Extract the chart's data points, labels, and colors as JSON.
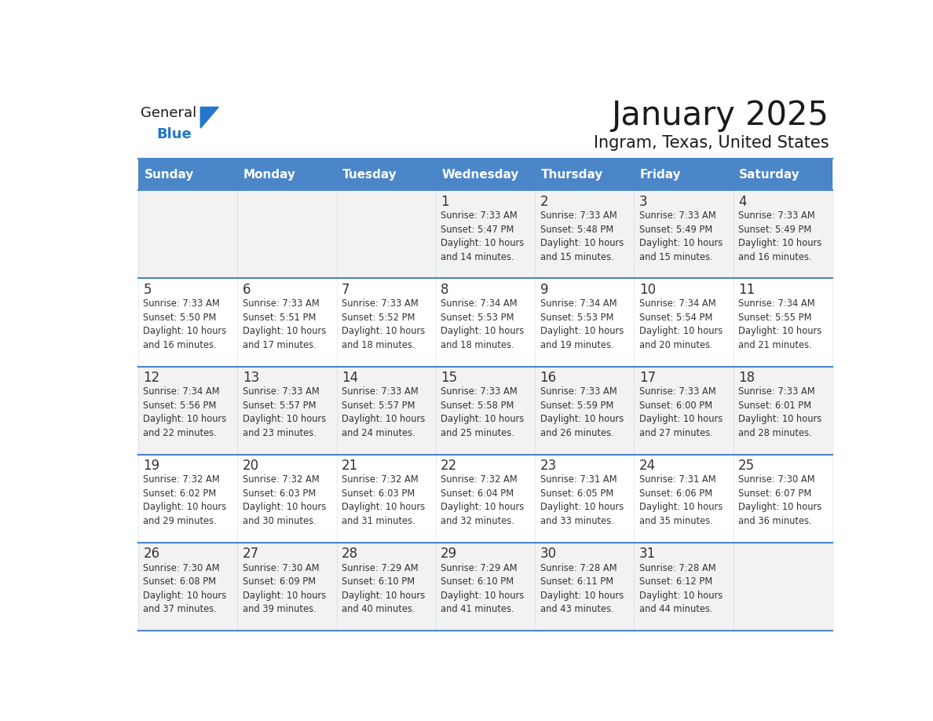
{
  "title": "January 2025",
  "subtitle": "Ingram, Texas, United States",
  "header_bg_color": "#4a86c8",
  "header_text_color": "#ffffff",
  "cell_bg_color": "#f2f2f2",
  "cell_alt_bg_color": "#ffffff",
  "day_number_color": "#333333",
  "cell_text_color": "#333333",
  "line_color": "#4a86c8",
  "days_of_week": [
    "Sunday",
    "Monday",
    "Tuesday",
    "Wednesday",
    "Thursday",
    "Friday",
    "Saturday"
  ],
  "calendar_data": [
    [
      {
        "day": null,
        "text": ""
      },
      {
        "day": null,
        "text": ""
      },
      {
        "day": null,
        "text": ""
      },
      {
        "day": 1,
        "text": "Sunrise: 7:33 AM\nSunset: 5:47 PM\nDaylight: 10 hours\nand 14 minutes."
      },
      {
        "day": 2,
        "text": "Sunrise: 7:33 AM\nSunset: 5:48 PM\nDaylight: 10 hours\nand 15 minutes."
      },
      {
        "day": 3,
        "text": "Sunrise: 7:33 AM\nSunset: 5:49 PM\nDaylight: 10 hours\nand 15 minutes."
      },
      {
        "day": 4,
        "text": "Sunrise: 7:33 AM\nSunset: 5:49 PM\nDaylight: 10 hours\nand 16 minutes."
      }
    ],
    [
      {
        "day": 5,
        "text": "Sunrise: 7:33 AM\nSunset: 5:50 PM\nDaylight: 10 hours\nand 16 minutes."
      },
      {
        "day": 6,
        "text": "Sunrise: 7:33 AM\nSunset: 5:51 PM\nDaylight: 10 hours\nand 17 minutes."
      },
      {
        "day": 7,
        "text": "Sunrise: 7:33 AM\nSunset: 5:52 PM\nDaylight: 10 hours\nand 18 minutes."
      },
      {
        "day": 8,
        "text": "Sunrise: 7:34 AM\nSunset: 5:53 PM\nDaylight: 10 hours\nand 18 minutes."
      },
      {
        "day": 9,
        "text": "Sunrise: 7:34 AM\nSunset: 5:53 PM\nDaylight: 10 hours\nand 19 minutes."
      },
      {
        "day": 10,
        "text": "Sunrise: 7:34 AM\nSunset: 5:54 PM\nDaylight: 10 hours\nand 20 minutes."
      },
      {
        "day": 11,
        "text": "Sunrise: 7:34 AM\nSunset: 5:55 PM\nDaylight: 10 hours\nand 21 minutes."
      }
    ],
    [
      {
        "day": 12,
        "text": "Sunrise: 7:34 AM\nSunset: 5:56 PM\nDaylight: 10 hours\nand 22 minutes."
      },
      {
        "day": 13,
        "text": "Sunrise: 7:33 AM\nSunset: 5:57 PM\nDaylight: 10 hours\nand 23 minutes."
      },
      {
        "day": 14,
        "text": "Sunrise: 7:33 AM\nSunset: 5:57 PM\nDaylight: 10 hours\nand 24 minutes."
      },
      {
        "day": 15,
        "text": "Sunrise: 7:33 AM\nSunset: 5:58 PM\nDaylight: 10 hours\nand 25 minutes."
      },
      {
        "day": 16,
        "text": "Sunrise: 7:33 AM\nSunset: 5:59 PM\nDaylight: 10 hours\nand 26 minutes."
      },
      {
        "day": 17,
        "text": "Sunrise: 7:33 AM\nSunset: 6:00 PM\nDaylight: 10 hours\nand 27 minutes."
      },
      {
        "day": 18,
        "text": "Sunrise: 7:33 AM\nSunset: 6:01 PM\nDaylight: 10 hours\nand 28 minutes."
      }
    ],
    [
      {
        "day": 19,
        "text": "Sunrise: 7:32 AM\nSunset: 6:02 PM\nDaylight: 10 hours\nand 29 minutes."
      },
      {
        "day": 20,
        "text": "Sunrise: 7:32 AM\nSunset: 6:03 PM\nDaylight: 10 hours\nand 30 minutes."
      },
      {
        "day": 21,
        "text": "Sunrise: 7:32 AM\nSunset: 6:03 PM\nDaylight: 10 hours\nand 31 minutes."
      },
      {
        "day": 22,
        "text": "Sunrise: 7:32 AM\nSunset: 6:04 PM\nDaylight: 10 hours\nand 32 minutes."
      },
      {
        "day": 23,
        "text": "Sunrise: 7:31 AM\nSunset: 6:05 PM\nDaylight: 10 hours\nand 33 minutes."
      },
      {
        "day": 24,
        "text": "Sunrise: 7:31 AM\nSunset: 6:06 PM\nDaylight: 10 hours\nand 35 minutes."
      },
      {
        "day": 25,
        "text": "Sunrise: 7:30 AM\nSunset: 6:07 PM\nDaylight: 10 hours\nand 36 minutes."
      }
    ],
    [
      {
        "day": 26,
        "text": "Sunrise: 7:30 AM\nSunset: 6:08 PM\nDaylight: 10 hours\nand 37 minutes."
      },
      {
        "day": 27,
        "text": "Sunrise: 7:30 AM\nSunset: 6:09 PM\nDaylight: 10 hours\nand 39 minutes."
      },
      {
        "day": 28,
        "text": "Sunrise: 7:29 AM\nSunset: 6:10 PM\nDaylight: 10 hours\nand 40 minutes."
      },
      {
        "day": 29,
        "text": "Sunrise: 7:29 AM\nSunset: 6:10 PM\nDaylight: 10 hours\nand 41 minutes."
      },
      {
        "day": 30,
        "text": "Sunrise: 7:28 AM\nSunset: 6:11 PM\nDaylight: 10 hours\nand 43 minutes."
      },
      {
        "day": 31,
        "text": "Sunrise: 7:28 AM\nSunset: 6:12 PM\nDaylight: 10 hours\nand 44 minutes."
      },
      {
        "day": null,
        "text": ""
      }
    ]
  ],
  "logo_general_color": "#1a1a1a",
  "logo_blue_color": "#2277cc",
  "logo_triangle_color": "#2277cc"
}
